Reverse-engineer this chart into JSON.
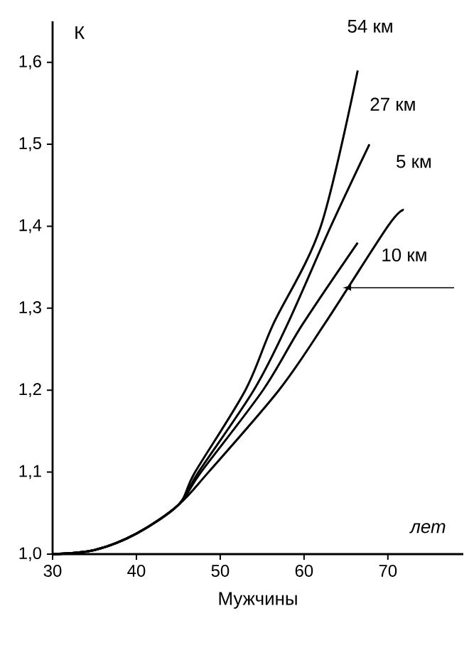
{
  "chart_data": {
    "type": "line",
    "xlabel": "Мужчины",
    "ylabel": "К",
    "annotations": [
      "лет"
    ],
    "xlim": [
      30,
      79
    ],
    "ylim": [
      1.0,
      1.65
    ],
    "xticks": [
      30,
      40,
      50,
      60,
      70
    ],
    "yticks": [
      {
        "value": 1.0,
        "label": "1,0"
      },
      {
        "value": 1.1,
        "label": "1,1"
      },
      {
        "value": 1.2,
        "label": "1,2"
      },
      {
        "value": 1.3,
        "label": "1,3"
      },
      {
        "value": 1.4,
        "label": "1,4"
      },
      {
        "value": 1.5,
        "label": "1,5"
      },
      {
        "value": 1.6,
        "label": "1,6"
      }
    ],
    "marker": "none",
    "line_style": "solid",
    "series": [
      {
        "name": "54 км",
        "color": "#000000",
        "x": [
          30,
          35,
          40,
          45,
          47,
          53,
          56.3,
          62,
          66.4
        ],
        "values": [
          1.0,
          1.005,
          1.025,
          1.06,
          1.1,
          1.2,
          1.28,
          1.4,
          1.59
        ]
      },
      {
        "name": "27 км",
        "color": "#000000",
        "x": [
          30,
          35,
          40,
          45,
          47.4,
          54,
          58,
          63.2,
          67.8
        ],
        "values": [
          1.0,
          1.005,
          1.025,
          1.06,
          1.1,
          1.2,
          1.28,
          1.4,
          1.5
        ]
      },
      {
        "name": "5 км",
        "color": "#000000",
        "x": [
          30,
          35,
          40,
          45,
          48.6,
          57,
          62.4,
          70,
          71.9
        ],
        "values": [
          1.0,
          1.005,
          1.025,
          1.06,
          1.1,
          1.2,
          1.28,
          1.4,
          1.42
        ]
      },
      {
        "name": "10 км",
        "color": "#000000",
        "x": [
          30,
          35,
          40,
          45,
          47.7,
          55.1,
          59.8,
          66.4
        ],
        "values": [
          1.0,
          1.005,
          1.025,
          1.06,
          1.1,
          1.2,
          1.28,
          1.38
        ]
      }
    ]
  }
}
